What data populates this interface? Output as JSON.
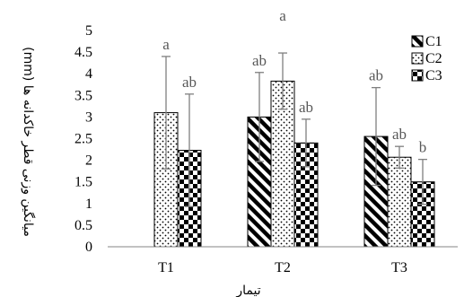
{
  "chart_data": {
    "type": "bar",
    "categories": [
      "T1",
      "T2",
      "T3"
    ],
    "series": [
      {
        "name": "C1",
        "pattern": "diagonal-stripes",
        "values": [
          0,
          3.0,
          2.55
        ],
        "errors": [
          0,
          1.03,
          1.13
        ],
        "labels": [
          "",
          "ab",
          "ab"
        ]
      },
      {
        "name": "C2",
        "pattern": "dots",
        "values": [
          3.1,
          3.83,
          2.07
        ],
        "errors": [
          1.3,
          0.65,
          0.25
        ],
        "labels": [
          "a",
          "a",
          "ab"
        ]
      },
      {
        "name": "C3",
        "pattern": "checkerboard",
        "values": [
          2.23,
          2.4,
          1.5
        ],
        "errors": [
          1.3,
          0.55,
          0.52
        ],
        "labels": [
          "ab",
          "ab",
          "b"
        ]
      }
    ],
    "ylabel": "میانگین وزنی قطر خاکدانه ها (mm)",
    "xlabel": "تیمار",
    "ylim": [
      0,
      5
    ],
    "yticks": [
      "0",
      "0.5",
      "1",
      "1.5",
      "2",
      "2.5",
      "3",
      "3.5",
      "4",
      "4.5",
      "5"
    ],
    "grid": false,
    "legend": "top-right",
    "colors": {
      "bar_fill": "#000000",
      "bar_bg": "#ffffff",
      "error_bar": "#7f7f7f",
      "axis": "#868686",
      "sig_label": "#595959"
    }
  }
}
